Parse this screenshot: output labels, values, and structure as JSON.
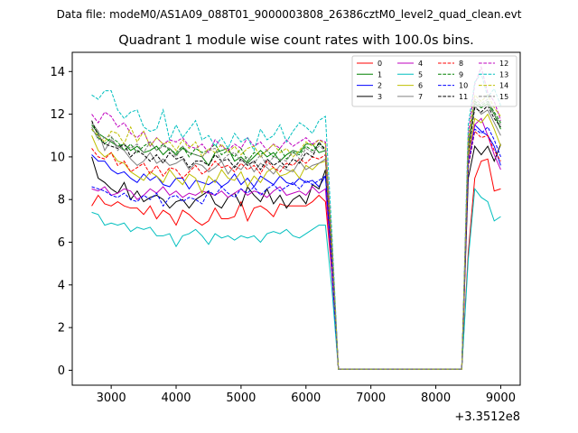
{
  "figure": {
    "suptitle": "Data file: modeM0/AS1A09_088T01_9000003808_26386cztM0_level2_quad_clean.evt"
  },
  "chart_data": {
    "type": "line",
    "title": "Quadrant 1 module wise count rates with 100.0s bins.",
    "xlabel": "",
    "ylabel": "",
    "x_offset_label": "+3.3512e8",
    "xlim": [
      2400,
      9300
    ],
    "ylim": [
      -0.7,
      14.9
    ],
    "xticks": [
      "3000",
      "4000",
      "5000",
      "6000",
      "7000",
      "8000",
      "9000"
    ],
    "xtick_values": [
      3000,
      4000,
      5000,
      6000,
      7000,
      8000,
      9000
    ],
    "yticks": [
      "0",
      "2",
      "4",
      "6",
      "8",
      "10",
      "12",
      "14"
    ],
    "ytick_values": [
      0,
      2,
      4,
      6,
      8,
      10,
      12,
      14
    ],
    "grid": false,
    "legend": {
      "placement": "top-right",
      "columns": 4
    },
    "x": [
      2700,
      2800,
      2900,
      3000,
      3100,
      3200,
      3300,
      3400,
      3500,
      3600,
      3700,
      3800,
      3900,
      4000,
      4100,
      4200,
      4300,
      4400,
      4500,
      4600,
      4700,
      4800,
      4900,
      5000,
      5100,
      5200,
      5300,
      5400,
      5500,
      5600,
      5700,
      5800,
      5900,
      6000,
      6100,
      6200,
      6300,
      6400,
      6500,
      6600,
      8400,
      8500,
      8600,
      8700,
      8800,
      8900,
      9000
    ],
    "series": [
      {
        "name": "0",
        "color": "#ff0000",
        "dash": "solid",
        "values": [
          7.7,
          8.2,
          7.8,
          7.7,
          7.9,
          7.7,
          7.6,
          7.6,
          7.3,
          7.7,
          7.1,
          7.5,
          7.3,
          6.8,
          7.5,
          7.3,
          7.0,
          6.8,
          7.0,
          7.6,
          7.1,
          7.1,
          7.2,
          7.9,
          7.0,
          7.6,
          7.7,
          7.5,
          7.2,
          7.8,
          7.7,
          7.7,
          7.7,
          7.7,
          7.9,
          8.2,
          7.9,
          4.5,
          0.05,
          0.05,
          0.05,
          5.5,
          9.0,
          9.8,
          9.9,
          8.4,
          8.5
        ]
      },
      {
        "name": "1",
        "color": "#008000",
        "dash": "solid",
        "values": [
          11.5,
          11.1,
          10.9,
          10.7,
          10.5,
          10.6,
          10.3,
          10.5,
          10.2,
          10.3,
          10.5,
          10.1,
          10.4,
          10.1,
          10.4,
          10.2,
          10.1,
          10.0,
          9.6,
          10.2,
          10.3,
          10.4,
          9.8,
          10.0,
          9.7,
          10.0,
          10.3,
          10.0,
          10.2,
          9.8,
          10.1,
          10.3,
          10.2,
          10.6,
          10.6,
          10.2,
          10.3,
          5.8,
          0.05,
          0.05,
          0.05,
          10.5,
          12.5,
          12.3,
          12.5,
          12.0,
          11.3
        ]
      },
      {
        "name": "2",
        "color": "#0000ff",
        "dash": "solid",
        "values": [
          10.1,
          9.8,
          9.8,
          9.4,
          9.2,
          9.3,
          9.0,
          8.8,
          9.2,
          8.9,
          9.1,
          8.7,
          8.6,
          9.0,
          9.0,
          8.5,
          8.9,
          8.8,
          8.7,
          8.9,
          8.6,
          8.8,
          9.2,
          8.7,
          9.0,
          8.6,
          9.1,
          8.9,
          8.7,
          9.1,
          8.8,
          8.7,
          9.0,
          8.8,
          8.9,
          8.6,
          9.1,
          5.0,
          0.05,
          0.05,
          0.05,
          9.8,
          11.5,
          11.2,
          11.0,
          10.5,
          9.6
        ]
      },
      {
        "name": "3",
        "color": "#000000",
        "dash": "solid",
        "values": [
          10.0,
          9.0,
          8.8,
          8.5,
          8.3,
          8.8,
          8.0,
          8.4,
          7.9,
          8.1,
          8.2,
          8.0,
          7.6,
          7.9,
          8.0,
          7.6,
          8.0,
          8.2,
          8.4,
          7.8,
          7.6,
          8.1,
          8.3,
          7.7,
          8.6,
          8.2,
          7.9,
          8.5,
          7.8,
          8.2,
          7.6,
          8.0,
          8.2,
          7.8,
          8.7,
          8.5,
          9.4,
          4.8,
          0.05,
          0.05,
          0.05,
          9.0,
          10.5,
          10.1,
          10.5,
          9.8,
          10.6
        ]
      },
      {
        "name": "4",
        "color": "#bf00bf",
        "dash": "solid",
        "values": [
          8.5,
          8.4,
          8.6,
          8.2,
          8.3,
          8.5,
          8.4,
          8.0,
          8.2,
          8.5,
          8.3,
          8.6,
          8.2,
          8.4,
          8.1,
          8.3,
          8.2,
          8.4,
          8.3,
          8.2,
          8.4,
          8.1,
          8.3,
          8.5,
          8.2,
          8.4,
          8.3,
          8.1,
          8.4,
          8.6,
          8.2,
          8.3,
          8.4,
          8.2,
          8.6,
          8.3,
          8.5,
          4.6,
          0.05,
          0.05,
          0.05,
          9.8,
          11.5,
          11.8,
          11.0,
          10.1,
          9.4
        ]
      },
      {
        "name": "5",
        "color": "#00bfbf",
        "dash": "solid",
        "values": [
          7.4,
          7.3,
          6.8,
          6.9,
          6.8,
          6.9,
          6.5,
          6.7,
          6.6,
          6.7,
          6.3,
          6.3,
          6.4,
          5.8,
          6.3,
          6.4,
          6.6,
          6.3,
          5.9,
          6.4,
          6.2,
          6.3,
          6.1,
          6.3,
          6.2,
          6.3,
          6.0,
          6.4,
          6.5,
          6.4,
          6.6,
          6.3,
          6.2,
          6.4,
          6.6,
          6.8,
          6.8,
          3.8,
          0.05,
          0.05,
          0.05,
          5.2,
          8.5,
          8.1,
          7.9,
          7.0,
          7.2
        ]
      },
      {
        "name": "6",
        "color": "#bfbf00",
        "dash": "solid",
        "values": [
          11.0,
          10.3,
          10.0,
          10.2,
          9.8,
          9.7,
          9.3,
          9.1,
          8.9,
          9.3,
          9.1,
          8.8,
          9.4,
          9.0,
          8.7,
          9.2,
          9.0,
          8.3,
          9.1,
          8.8,
          9.4,
          9.0,
          8.9,
          9.3,
          8.6,
          9.1,
          8.8,
          9.3,
          9.5,
          9.1,
          9.2,
          9.4,
          9.0,
          9.6,
          9.4,
          9.7,
          9.8,
          5.2,
          0.05,
          0.05,
          0.05,
          10.0,
          11.8,
          11.6,
          12.0,
          11.3,
          10.5
        ]
      },
      {
        "name": "7",
        "color": "#808080",
        "dash": "solid",
        "values": [
          11.6,
          11.2,
          10.3,
          10.8,
          10.5,
          10.3,
          9.9,
          9.6,
          9.8,
          10.2,
          9.7,
          9.9,
          9.6,
          9.7,
          9.9,
          9.4,
          9.7,
          9.6,
          9.3,
          9.5,
          9.8,
          9.2,
          9.6,
          9.4,
          9.8,
          9.3,
          9.7,
          9.5,
          9.2,
          9.6,
          9.4,
          9.3,
          9.8,
          9.4,
          9.6,
          9.7,
          9.9,
          5.4,
          0.05,
          0.05,
          0.05,
          10.3,
          12.4,
          12.0,
          12.2,
          11.6,
          11.0
        ]
      },
      {
        "name": "8",
        "color": "#ff0000",
        "dash": "dashed",
        "values": [
          10.4,
          10.0,
          9.9,
          10.2,
          9.6,
          9.8,
          9.3,
          9.5,
          9.7,
          9.2,
          9.6,
          9.1,
          9.5,
          9.4,
          9.0,
          9.3,
          9.6,
          9.2,
          9.4,
          9.8,
          9.5,
          9.6,
          9.3,
          9.7,
          9.4,
          9.6,
          9.2,
          9.8,
          9.5,
          9.3,
          9.7,
          9.6,
          9.9,
          9.7,
          10.0,
          9.9,
          10.1,
          5.5,
          0.05,
          0.05,
          0.05,
          9.5,
          11.2,
          10.9,
          11.0,
          10.3,
          9.8
        ]
      },
      {
        "name": "9",
        "color": "#008000",
        "dash": "dashed",
        "values": [
          11.3,
          10.9,
          10.6,
          10.9,
          10.7,
          10.3,
          10.6,
          10.2,
          10.5,
          10.7,
          10.3,
          10.6,
          10.3,
          10.2,
          10.5,
          10.0,
          10.4,
          10.2,
          10.3,
          10.6,
          10.1,
          10.3,
          10.0,
          10.4,
          9.8,
          10.2,
          10.1,
          10.3,
          10.0,
          10.4,
          9.9,
          10.2,
          10.1,
          10.5,
          10.3,
          10.6,
          10.4,
          5.8,
          0.05,
          0.05,
          0.05,
          10.6,
          12.6,
          12.4,
          12.6,
          12.1,
          11.6
        ]
      },
      {
        "name": "10",
        "color": "#0000ff",
        "dash": "dashed",
        "values": [
          8.6,
          8.5,
          8.4,
          8.2,
          8.1,
          8.3,
          8.0,
          7.9,
          8.2,
          8.0,
          8.3,
          7.7,
          8.1,
          8.2,
          7.9,
          8.1,
          8.0,
          7.8,
          8.4,
          8.2,
          8.6,
          8.3,
          8.1,
          8.5,
          8.3,
          8.6,
          8.2,
          8.5,
          8.7,
          8.4,
          8.6,
          8.8,
          8.5,
          8.9,
          8.7,
          8.9,
          9.1,
          4.9,
          0.05,
          0.05,
          0.05,
          9.6,
          11.3,
          11.1,
          11.4,
          10.8,
          10.0
        ]
      },
      {
        "name": "11",
        "color": "#000000",
        "dash": "dashed",
        "values": [
          11.7,
          11.0,
          10.6,
          10.5,
          10.4,
          10.6,
          10.0,
          10.3,
          10.1,
          9.8,
          10.1,
          9.7,
          10.2,
          9.9,
          10.0,
          9.5,
          9.8,
          9.8,
          9.6,
          10.1,
          9.8,
          9.9,
          9.5,
          9.9,
          9.6,
          9.8,
          9.4,
          9.9,
          9.6,
          9.8,
          9.5,
          9.9,
          9.7,
          10.2,
          10.0,
          10.7,
          10.3,
          5.6,
          0.05,
          0.05,
          0.05,
          10.2,
          12.3,
          12.1,
          12.4,
          11.8,
          11.4
        ]
      },
      {
        "name": "12",
        "color": "#bf00bf",
        "dash": "dashed",
        "values": [
          12.0,
          11.6,
          12.1,
          11.9,
          11.4,
          11.6,
          11.1,
          10.9,
          11.2,
          10.5,
          10.9,
          10.6,
          10.8,
          10.7,
          10.9,
          10.5,
          10.4,
          10.6,
          10.2,
          10.8,
          10.5,
          10.3,
          10.6,
          10.4,
          10.9,
          10.5,
          10.7,
          10.3,
          10.6,
          10.4,
          10.8,
          10.5,
          10.7,
          10.9,
          10.6,
          10.8,
          10.7,
          6.0,
          0.05,
          0.05,
          0.05,
          11.0,
          13.4,
          14.2,
          13.0,
          12.6,
          11.7
        ]
      },
      {
        "name": "13",
        "color": "#00bfbf",
        "dash": "dashed",
        "values": [
          12.9,
          12.7,
          13.1,
          13.1,
          12.2,
          11.8,
          12.1,
          12.2,
          11.4,
          11.2,
          11.3,
          12.2,
          10.8,
          11.5,
          10.9,
          11.3,
          11.7,
          10.8,
          11.0,
          10.5,
          10.9,
          10.4,
          11.1,
          10.7,
          10.9,
          10.3,
          11.3,
          10.8,
          11.0,
          11.5,
          10.7,
          11.2,
          11.6,
          11.4,
          11.1,
          11.7,
          11.9,
          6.4,
          0.05,
          0.05,
          0.05,
          11.5,
          13.5,
          13.9,
          12.8,
          13.2,
          12.4
        ]
      },
      {
        "name": "14",
        "color": "#bfbf00",
        "dash": "dashed",
        "values": [
          11.3,
          11.0,
          10.7,
          11.2,
          11.1,
          10.6,
          11.4,
          10.7,
          11.2,
          10.5,
          10.9,
          10.6,
          10.7,
          10.3,
          10.8,
          10.4,
          10.7,
          10.0,
          10.4,
          10.2,
          10.6,
          10.2,
          10.5,
          10.1,
          10.4,
          10.5,
          10.0,
          10.3,
          10.6,
          10.2,
          10.4,
          10.0,
          10.3,
          10.7,
          10.5,
          10.8,
          10.6,
          5.9,
          0.05,
          0.05,
          0.05,
          10.8,
          12.9,
          12.6,
          12.9,
          12.3,
          11.9
        ]
      },
      {
        "name": "15",
        "color": "#808080",
        "dash": "dashed",
        "values": [
          11.4,
          10.8,
          10.9,
          11.0,
          10.3,
          10.6,
          10.4,
          10.6,
          10.2,
          10.7,
          10.3,
          10.5,
          10.4,
          10.0,
          10.5,
          10.2,
          10.1,
          10.0,
          10.3,
          10.4,
          9.8,
          10.1,
          10.2,
          9.8,
          10.0,
          9.7,
          10.1,
          9.6,
          10.0,
          9.9,
          9.8,
          10.3,
          9.9,
          10.4,
          10.2,
          10.5,
          10.3,
          5.7,
          0.05,
          0.05,
          0.05,
          10.4,
          12.7,
          12.5,
          12.7,
          12.0,
          11.5
        ]
      }
    ]
  }
}
